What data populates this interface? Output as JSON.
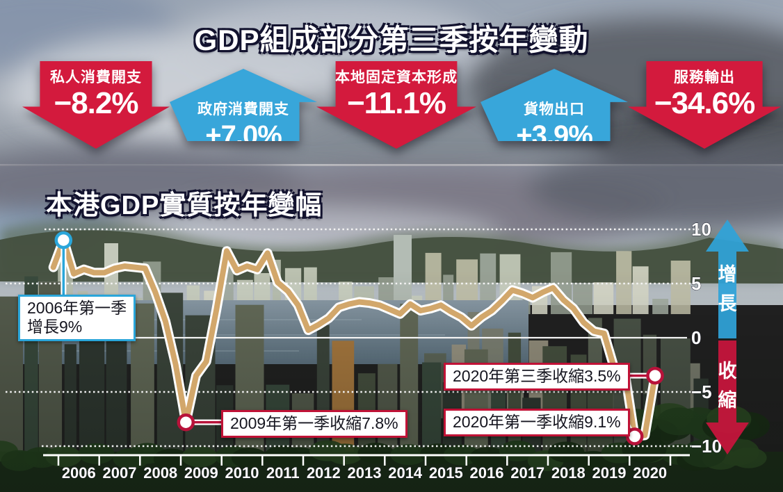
{
  "header": {
    "title": "GDP組成部分第三季按年變動"
  },
  "arrows": [
    {
      "label": "私人消費開支",
      "value": "−8.2%",
      "direction": "down",
      "color": "#d31a3d"
    },
    {
      "label": "政府消費開支",
      "value": "+7.0%",
      "direction": "up",
      "color": "#38a6da"
    },
    {
      "label": "本地固定資本形成",
      "value": "−11.1%",
      "direction": "down",
      "color": "#d31a3d"
    },
    {
      "label": "貨物出口",
      "value": "+3.9%",
      "direction": "up",
      "color": "#38a6da"
    },
    {
      "label": "服務輸出",
      "value": "−34.6%",
      "direction": "down",
      "color": "#d31a3d"
    }
  ],
  "chart": {
    "title": "本港GDP實質按年變幅",
    "up_label": "增長",
    "down_label": "收縮",
    "up_color": "#2fa3d8",
    "down_color": "#c8143c"
  },
  "callouts": [
    {
      "id": "c2006",
      "line1": "2006年第一季",
      "line2": "增長9%",
      "accent": "#2aa6da"
    },
    {
      "id": "c2009",
      "text": "2009年第一季收縮7.8%",
      "accent": "#c01236"
    },
    {
      "id": "c2020q3",
      "text": "2020年第三季收縮3.5%",
      "accent": "#c01236"
    },
    {
      "id": "c2020q1",
      "text": "2020年第一季收縮9.1%",
      "accent": "#c01236"
    }
  ],
  "chart_data": {
    "type": "line",
    "title": "本港GDP實質按年變幅",
    "unit": "% year-on-year (real GDP)",
    "frequency": "quarterly",
    "series_start": "2005-Q4",
    "x_years": [
      2006,
      2007,
      2008,
      2009,
      2010,
      2011,
      2012,
      2013,
      2014,
      2015,
      2016,
      2017,
      2018,
      2019,
      2020
    ],
    "values": [
      6.5,
      9.0,
      5.9,
      6.3,
      6.0,
      6.0,
      6.4,
      6.6,
      6.5,
      6.4,
      4.2,
      1.5,
      -2.5,
      -7.8,
      -3.5,
      -2.2,
      2.6,
      8.0,
      6.2,
      6.6,
      6.3,
      7.8,
      5.1,
      4.3,
      3.0,
      0.7,
      1.2,
      1.8,
      2.8,
      3.1,
      3.3,
      3.2,
      3.0,
      2.6,
      2.2,
      3.1,
      2.5,
      2.7,
      3.0,
      2.4,
      1.9,
      1.1,
      1.9,
      2.5,
      3.4,
      4.4,
      4.1,
      3.7,
      4.2,
      4.6,
      3.5,
      2.7,
      1.4,
      0.6,
      0.4,
      -2.8,
      -3.0,
      -9.1,
      -9.0,
      -3.5
    ],
    "yticks": [
      10,
      5,
      0,
      -5,
      -10
    ],
    "ylim": [
      -10.5,
      10.5
    ],
    "grid": "dotted horizontal, solid zero line",
    "legend": "none",
    "line_color": "#d2a76b",
    "line_casing": "#ffffff",
    "markers": [
      {
        "quarter": "2006-Q1",
        "value": 9.0,
        "index": 1,
        "ring": "#2aa6da",
        "label": "2006年第一季增長9%"
      },
      {
        "quarter": "2009-Q1",
        "value": -7.8,
        "index": 13,
        "ring": "#b8123a",
        "label": "2009年第一季收縮7.8%"
      },
      {
        "quarter": "2020-Q1",
        "value": -9.1,
        "index": 57,
        "ring": "#b8123a",
        "label": "2020年第一季收縮9.1%"
      },
      {
        "quarter": "2020-Q3",
        "value": -3.5,
        "index": 59,
        "ring": "#b8123a",
        "label": "2020年第三季收縮3.5%"
      }
    ]
  }
}
